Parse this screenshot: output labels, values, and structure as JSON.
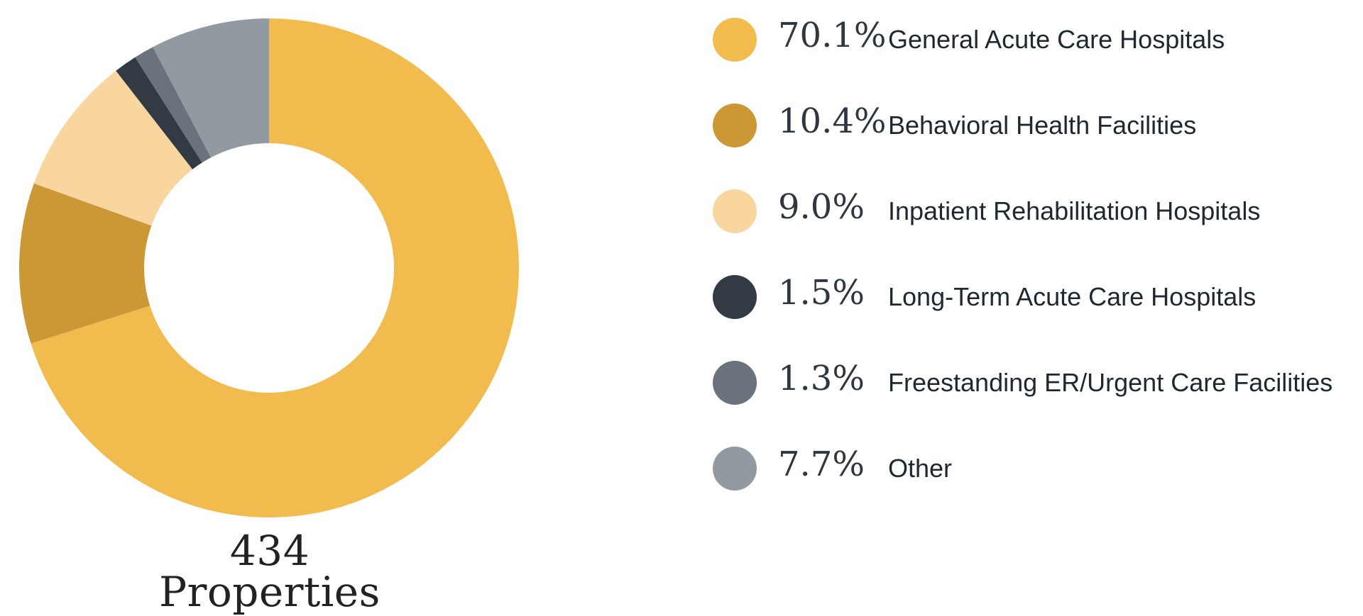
{
  "chart_data": {
    "type": "pie",
    "variant": "donut",
    "center_label": "434 Properties",
    "legend_position": "right",
    "slices": [
      {
        "label": "General Acute Care Hospitals",
        "value": 70.1,
        "display": "70.1%",
        "color": "#F2BB4E"
      },
      {
        "label": "Behavioral Health Facilities",
        "value": 10.4,
        "display": "10.4%",
        "color": "#CC9835"
      },
      {
        "label": "Inpatient Rehabilitation Hospitals",
        "value": 9.0,
        "display": "9.0%",
        "color": "#F9D5A0"
      },
      {
        "label": "Long-Term Acute Care Hospitals",
        "value": 1.5,
        "display": "1.5%",
        "color": "#323A43"
      },
      {
        "label": "Freestanding ER/Urgent Care Facilities",
        "value": 1.3,
        "display": "1.3%",
        "color": "#6A727B"
      },
      {
        "label": "Other",
        "value": 7.7,
        "display": "7.7%",
        "color": "#9199A1"
      }
    ]
  }
}
